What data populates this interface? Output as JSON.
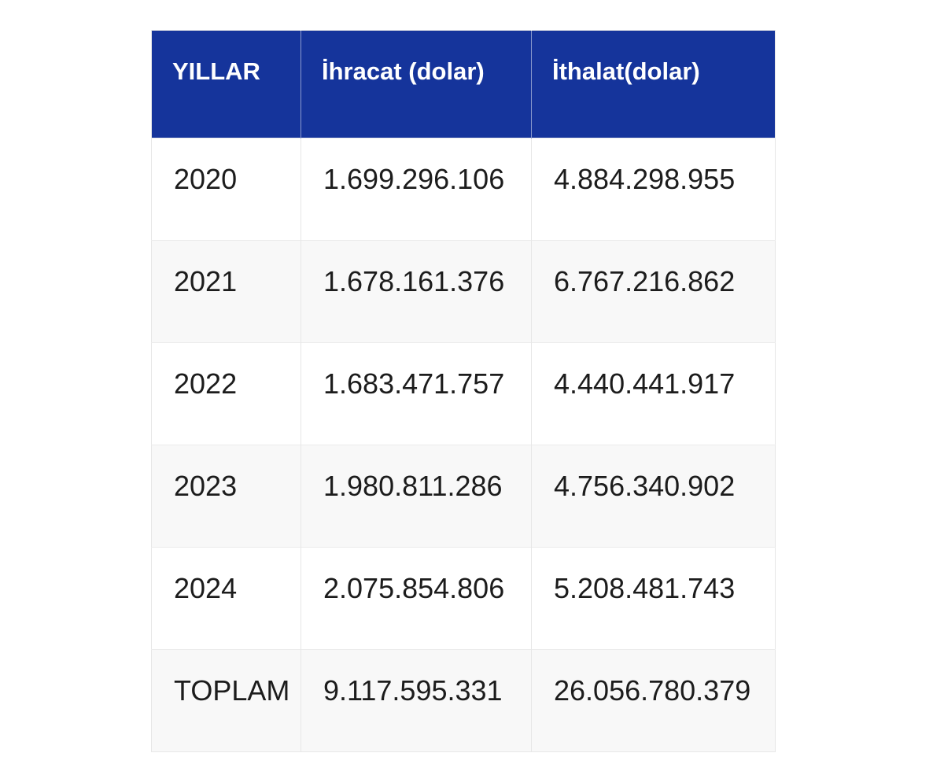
{
  "table": {
    "columns": [
      "YILLAR",
      "İhracat (dolar)",
      "İthalat(dolar)"
    ],
    "column_keys": [
      "yillar",
      "ihracat",
      "ithalat"
    ],
    "rows": [
      [
        "2020",
        "1.699.296.106",
        "4.884.298.955"
      ],
      [
        "2021",
        "1.678.161.376",
        "6.767.216.862"
      ],
      [
        "2022",
        "1.683.471.757",
        "4.440.441.917"
      ],
      [
        "2023",
        "1.980.811.286",
        "4.756.340.902"
      ],
      [
        "2024",
        "2.075.854.806",
        "5.208.481.743"
      ],
      [
        "TOPLAM",
        "9.117.595.331",
        "26.056.780.379"
      ]
    ],
    "colors": {
      "header_bg": "#15349b",
      "header_text": "#ffffff",
      "row_bg": "#ffffff",
      "row_alt_bg": "#f8f8f8",
      "border": "#e7e7e7",
      "text": "#1c1c1c"
    }
  },
  "chart_data": {
    "type": "table",
    "columns": [
      "YILLAR",
      "İhracat (dolar)",
      "İthalat(dolar)"
    ],
    "rows": [
      [
        "2020",
        "1.699.296.106",
        "4.884.298.955"
      ],
      [
        "2021",
        "1.678.161.376",
        "6.767.216.862"
      ],
      [
        "2022",
        "1.683.471.757",
        "4.440.441.917"
      ],
      [
        "2023",
        "1.980.811.286",
        "4.756.340.902"
      ],
      [
        "2024",
        "2.075.854.806",
        "5.208.481.743"
      ],
      [
        "TOPLAM",
        "9.117.595.331",
        "26.056.780.379"
      ]
    ],
    "series": [
      {
        "name": "İhracat (dolar)",
        "values": [
          1699296106,
          1678161376,
          1683471757,
          1980811286,
          2075854806
        ]
      },
      {
        "name": "İthalat(dolar)",
        "values": [
          4884298955,
          6767216862,
          4440441917,
          4756340902,
          5208481743
        ]
      }
    ],
    "categories": [
      "2020",
      "2021",
      "2022",
      "2023",
      "2024"
    ],
    "totals": {
      "label": "TOPLAM",
      "ihracat": 9117595331,
      "ithalat": 26056780379
    }
  }
}
